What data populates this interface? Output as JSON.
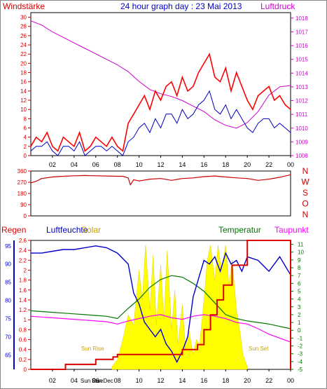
{
  "header": {
    "title": "24 hour graph day : 23 Mai 2013",
    "left_label": "Windstärke",
    "right_label": "Luftdruck"
  },
  "colors": {
    "wind": "#ff0000",
    "gust": "#0000c0",
    "pressure": "#cc00cc",
    "direction": "#cc0000",
    "rain": "#dd0000",
    "humidity": "#0000cc",
    "solar": "#ffff00",
    "temperature": "#007700",
    "dewpoint": "#ff00ff",
    "frame": "#000000"
  },
  "hour_ticks": [
    "02",
    "04",
    "06",
    "08",
    "10",
    "12",
    "14",
    "16",
    "18",
    "20",
    "22",
    "00"
  ],
  "chart_data": [
    {
      "type": "line",
      "name": "wind_pressure",
      "y_left": {
        "label": "Windstärke",
        "ticks": [
          0,
          2,
          4,
          6,
          8,
          10,
          12,
          14,
          16,
          18,
          20,
          22,
          24,
          26,
          28,
          30
        ],
        "range": [
          0,
          31
        ]
      },
      "y_right": {
        "label": "Luftdruck",
        "ticks": [
          1008,
          1009,
          1010,
          1011,
          1012,
          1013,
          1014,
          1015,
          1016,
          1017,
          1018
        ],
        "range": [
          1008,
          1018.4
        ]
      },
      "x_ticks": [
        "02",
        "04",
        "06",
        "08",
        "10",
        "12",
        "14",
        "16",
        "18",
        "20",
        "22",
        "00"
      ],
      "series": [
        {
          "name": "Windstärke",
          "axis": "left",
          "x": [
            0,
            0.5,
            1,
            1.5,
            2,
            2.5,
            3,
            3.5,
            4,
            4.5,
            5,
            5.5,
            6,
            6.5,
            7,
            7.5,
            8,
            8.5,
            9,
            9.5,
            10,
            10.5,
            11,
            11.5,
            12,
            12.5,
            13,
            13.5,
            14,
            14.5,
            15,
            15.5,
            16,
            16.5,
            17,
            17.5,
            18,
            18.5,
            19,
            19.5,
            20,
            20.5,
            21,
            21.5,
            22,
            22.5,
            23,
            23.5,
            24
          ],
          "values": [
            2,
            4,
            3,
            5,
            2,
            1,
            4,
            3,
            2,
            5,
            1,
            2,
            4,
            3,
            2,
            4,
            2,
            1,
            7,
            9,
            11,
            13,
            10,
            14,
            12,
            15,
            16,
            13,
            17,
            14,
            15,
            18,
            20,
            22,
            17,
            16,
            19,
            14,
            18,
            15,
            12,
            10,
            13,
            14,
            15,
            12,
            13,
            11,
            10
          ]
        },
        {
          "name": "Böen",
          "axis": "left",
          "x": [
            0,
            0.5,
            1,
            1.5,
            2,
            2.5,
            3,
            3.5,
            4,
            4.5,
            5,
            5.5,
            6,
            6.5,
            7,
            7.5,
            8,
            8.5,
            9,
            9.5,
            10,
            10.5,
            11,
            11.5,
            12,
            12.5,
            13,
            13.5,
            14,
            14.5,
            15,
            15.5,
            16,
            16.5,
            17,
            17.5,
            18,
            18.5,
            19,
            19.5,
            20,
            20.5,
            21,
            21.5,
            22,
            22.5,
            23,
            23.5,
            24
          ],
          "values": [
            1,
            2,
            2,
            3,
            1,
            0,
            2,
            2,
            1,
            3,
            0,
            1,
            2,
            2,
            1,
            2,
            1,
            0,
            3,
            4,
            6,
            7,
            5,
            8,
            6,
            9,
            9,
            7,
            10,
            8,
            9,
            11,
            12,
            14,
            10,
            9,
            11,
            8,
            10,
            8,
            6,
            5,
            7,
            8,
            8,
            6,
            7,
            6,
            5
          ]
        },
        {
          "name": "Luftdruck",
          "axis": "right",
          "x": [
            0,
            1,
            2,
            3,
            4,
            5,
            6,
            7,
            8,
            9,
            10,
            11,
            12,
            13,
            14,
            15,
            16,
            17,
            18,
            19,
            20,
            21,
            22,
            23,
            24
          ],
          "values": [
            1017.8,
            1017.5,
            1017.0,
            1016.6,
            1016.2,
            1015.8,
            1015.4,
            1015.0,
            1014.6,
            1014.1,
            1013.4,
            1012.8,
            1012.5,
            1012.3,
            1012.0,
            1011.6,
            1011.2,
            1010.6,
            1010.2,
            1010.0,
            1010.4,
            1011.2,
            1012.4,
            1013.0,
            1013.1
          ]
        }
      ]
    },
    {
      "type": "line",
      "name": "wind_direction",
      "y_left": {
        "ticks": [
          0,
          90,
          180,
          270,
          360
        ],
        "range": [
          0,
          360
        ]
      },
      "y_right_labels": [
        "N",
        "W",
        "S",
        "O",
        "N"
      ],
      "series": [
        {
          "name": "Windrichtung",
          "axis": "left",
          "x": [
            0,
            0.5,
            1,
            2,
            3,
            4,
            5,
            6,
            7,
            8,
            8.5,
            9,
            9.2,
            9.5,
            10,
            11,
            12,
            13,
            14,
            15,
            16,
            17,
            18,
            19,
            20,
            21,
            22,
            23,
            24
          ],
          "values": [
            265,
            278,
            300,
            312,
            318,
            322,
            324,
            322,
            320,
            318,
            318,
            305,
            250,
            290,
            280,
            295,
            300,
            285,
            300,
            305,
            315,
            320,
            312,
            305,
            300,
            285,
            295,
            310,
            330
          ]
        }
      ]
    },
    {
      "type": "line",
      "name": "rain_humidity_solar_temp",
      "y_left_regen": {
        "label": "Regen",
        "ticks": [
          0,
          0.2,
          0.4,
          0.6,
          0.8,
          1,
          1.2,
          1.4,
          1.6,
          1.8,
          2,
          2.2,
          2.4,
          2.6
        ],
        "range": [
          0,
          2.6
        ]
      },
      "y_left_humidity": {
        "label": "Luftfeuchte",
        "ticks": [
          65,
          70,
          75,
          80,
          85,
          90,
          95
        ],
        "range": [
          61,
          96.5
        ]
      },
      "y_right": {
        "label": "Temperatur / Taupunkt",
        "ticks": [
          -5,
          -4,
          -3,
          -2,
          -1,
          0,
          1,
          2,
          3,
          4,
          5,
          6,
          7,
          8,
          9,
          10,
          11
        ],
        "range": [
          -5,
          11.5
        ]
      },
      "labels": {
        "regen": "Regen",
        "humidity": "Luftfeuchte",
        "solar": "Solar",
        "temperature": "Temperatur",
        "dewpoint": "Taupunkt",
        "sunrise": "Sun Rise",
        "sunset": "Sun Set",
        "x_marks": [
          "Sun Rise",
          "Sun Dec"
        ]
      },
      "series": [
        {
          "name": "Regen",
          "axis": "regen",
          "x": [
            0,
            3.2,
            3.2,
            6.0,
            6.0,
            7.6,
            7.6,
            8.0,
            8.0,
            14.0,
            14.0,
            15.4,
            15.4,
            16.0,
            16.0,
            16.6,
            16.6,
            17.2,
            17.2,
            17.8,
            17.8,
            18.6,
            18.6,
            20.0,
            20.0,
            24.0,
            24.0
          ],
          "values": [
            0,
            0,
            0.1,
            0.1,
            0.2,
            0.2,
            0.25,
            0.25,
            0.3,
            0.3,
            0.4,
            0.4,
            0.5,
            0.5,
            0.8,
            0.8,
            1.1,
            1.1,
            1.4,
            1.4,
            1.7,
            1.7,
            2.1,
            2.1,
            2.6,
            2.6,
            0
          ]
        },
        {
          "name": "Luftfeuchte",
          "axis": "humidity",
          "x": [
            0,
            1,
            2,
            3,
            4,
            5,
            6,
            7,
            8,
            9,
            9.5,
            10,
            10.5,
            11,
            11.5,
            12,
            12.5,
            13,
            13.5,
            14,
            14.5,
            15,
            15.5,
            16,
            16.5,
            17,
            17.5,
            18,
            18.5,
            19,
            19.5,
            20,
            21,
            22,
            23,
            24
          ],
          "values": [
            93,
            93,
            93.5,
            94,
            94,
            94.5,
            95,
            94.5,
            93,
            90,
            82,
            79,
            74,
            72,
            70,
            72,
            68,
            66,
            63,
            66,
            70,
            81,
            86,
            91,
            90,
            92,
            88,
            93,
            90,
            91,
            88,
            92,
            91,
            88,
            92,
            87
          ]
        },
        {
          "name": "Solar",
          "axis": "regen",
          "fill": true,
          "x": [
            7.5,
            8,
            8.5,
            9,
            9.5,
            10,
            10.3,
            10.6,
            11,
            11.3,
            11.6,
            12,
            12.3,
            12.6,
            13,
            13.3,
            13.6,
            14,
            14.3,
            14.6,
            15,
            15.3,
            15.6,
            16,
            16.3,
            16.6,
            17,
            17.3,
            17.6,
            18,
            18.3,
            18.6,
            19,
            19.3,
            19.6,
            20
          ],
          "values": [
            0.05,
            0.2,
            0.6,
            1.1,
            0.9,
            2.0,
            1.4,
            2.5,
            1.2,
            2.3,
            0.9,
            2.1,
            1.0,
            2.4,
            0.8,
            1.6,
            0.5,
            1.3,
            0.4,
            0.8,
            0.3,
            0.6,
            0.5,
            1.4,
            2.2,
            2.5,
            1.8,
            2.5,
            2.0,
            2.5,
            1.7,
            2.2,
            1.2,
            0.8,
            0.3,
            0.05
          ]
        },
        {
          "name": "Temperatur",
          "axis": "right",
          "x": [
            0,
            1,
            2,
            3,
            4,
            5,
            6,
            7,
            8,
            9,
            10,
            11,
            12,
            13,
            14,
            15,
            16,
            17,
            18,
            19,
            20,
            21,
            22,
            23,
            24
          ],
          "values": [
            2.5,
            2.4,
            2.3,
            2.2,
            2.1,
            2.0,
            1.9,
            1.8,
            1.5,
            2.8,
            4.0,
            5.5,
            6.5,
            7.0,
            6.8,
            6.0,
            5.0,
            3.5,
            2.0,
            1.5,
            1.2,
            1.0,
            0.8,
            0.5,
            0.2
          ]
        },
        {
          "name": "Taupunkt",
          "axis": "right",
          "x": [
            0,
            1,
            2,
            3,
            4,
            5,
            6,
            7,
            8,
            9,
            10,
            11,
            12,
            13,
            14,
            15,
            16,
            17,
            18,
            19,
            20,
            21,
            22,
            23,
            24
          ],
          "values": [
            1.8,
            1.7,
            1.6,
            1.5,
            1.4,
            1.3,
            1.2,
            1.1,
            0.8,
            1.2,
            1.5,
            1.8,
            2.0,
            1.6,
            1.4,
            1.8,
            2.0,
            1.8,
            1.5,
            1.0,
            0.8,
            0.2,
            -0.5,
            -1.0,
            -1.5
          ]
        }
      ]
    }
  ]
}
